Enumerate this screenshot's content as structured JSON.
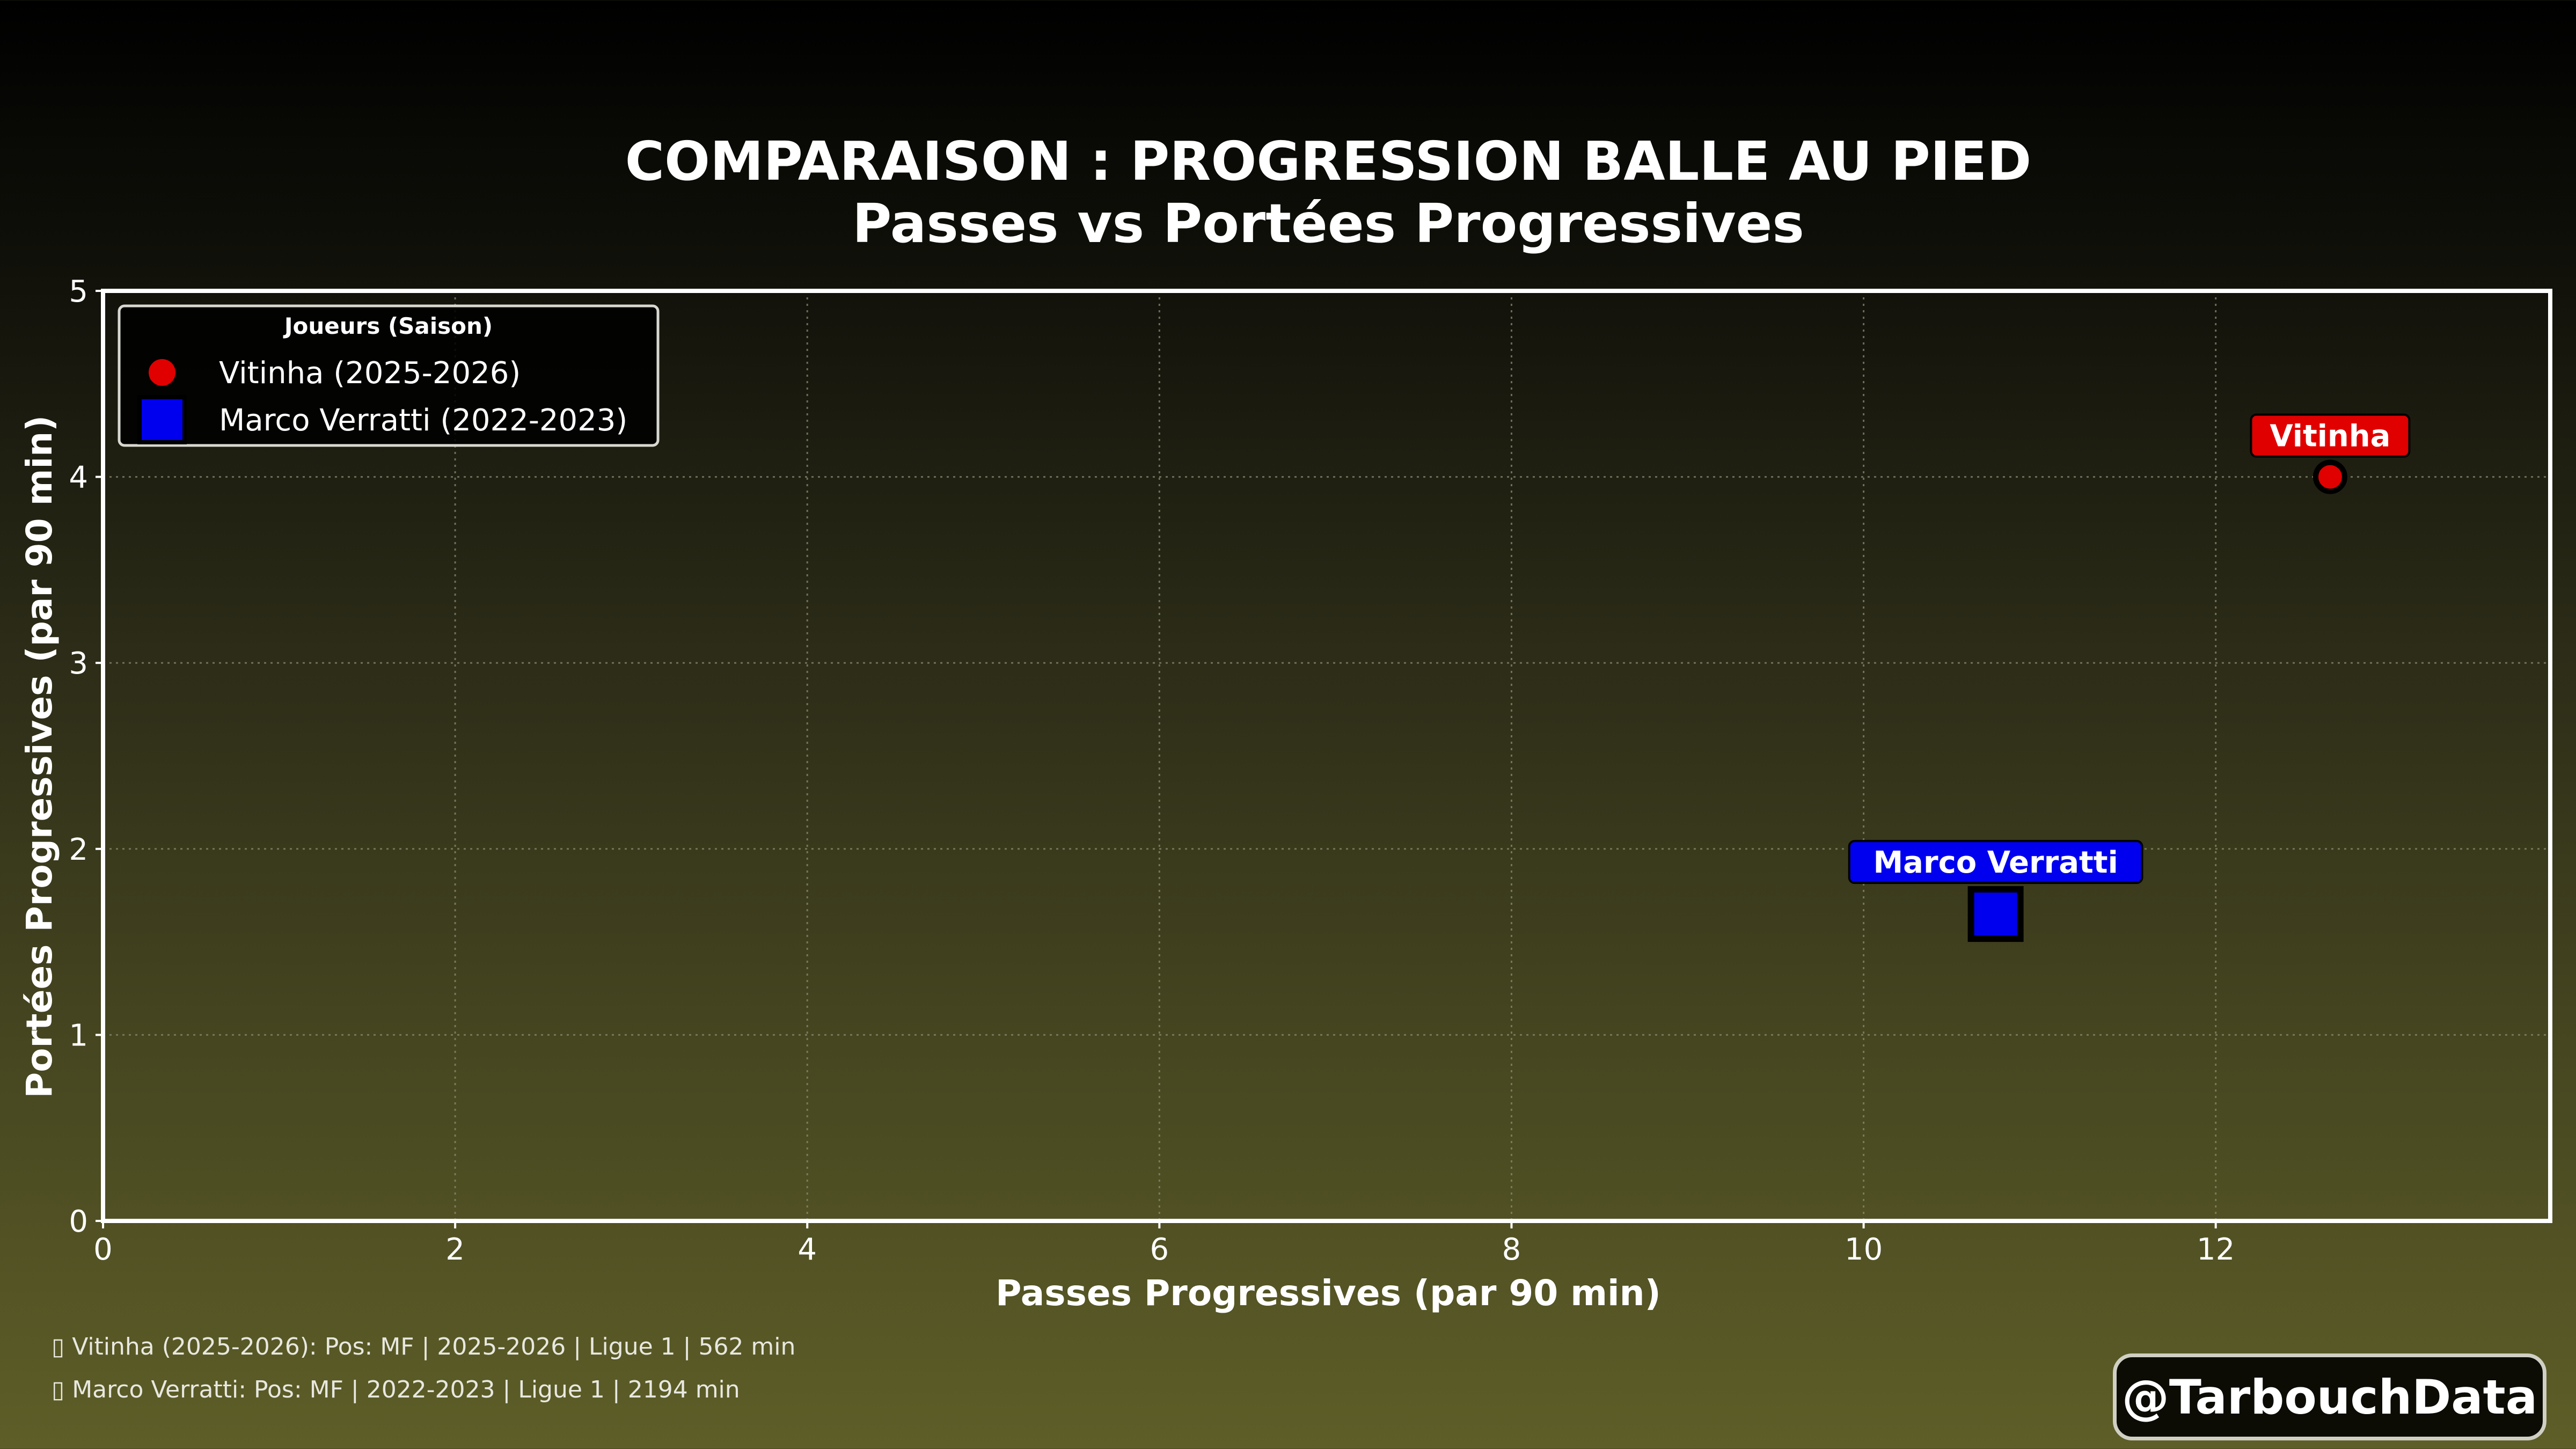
{
  "title": {
    "line1": "COMPARAISON : PROGRESSION BALLE AU PIED",
    "line2": "Passes vs Portées Progressives"
  },
  "chart_data": {
    "type": "scatter",
    "title": "COMPARAISON : PROGRESSION BALLE AU PIED — Passes vs Portées Progressives",
    "xlabel": "Passes Progressives (par 90 min)",
    "ylabel": "Portées Progressives (par 90 min)",
    "xlim": [
      0,
      13.9
    ],
    "ylim": [
      0,
      5
    ],
    "xticks": [
      0,
      2,
      4,
      6,
      8,
      10,
      12
    ],
    "yticks": [
      0,
      1,
      2,
      3,
      4,
      5
    ],
    "grid": true,
    "legend": {
      "title": "Joueurs (Saison)",
      "placement": "top-left"
    },
    "series": [
      {
        "name": "Vitinha (2025-2026)",
        "label": "Vitinha",
        "marker": "circle",
        "color": "#e00000",
        "x": [
          12.65
        ],
        "y": [
          4.0
        ]
      },
      {
        "name": "Marco Verratti (2022-2023)",
        "label": "Marco Verratti",
        "marker": "square",
        "color": "#0000ee",
        "x": [
          10.75
        ],
        "y": [
          1.65
        ]
      }
    ]
  },
  "footer": {
    "note1": "▯ Vitinha (2025-2026): Pos: MF | 2025-2026 | Ligue 1 | 562 min",
    "note2": "▯ Marco Verratti: Pos: MF | 2022-2023 | Ligue 1 | 2194 min"
  },
  "watermark": "@TarbouchData"
}
